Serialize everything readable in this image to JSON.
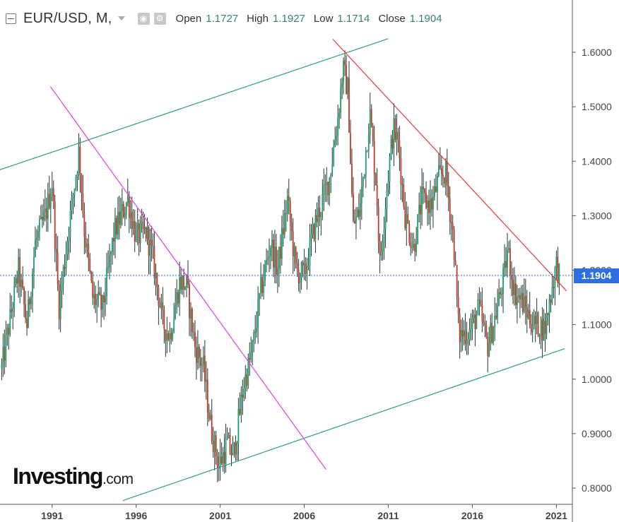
{
  "header": {
    "symbol": "EUR/USD, M,",
    "open_label": "Open",
    "open_value": "1.1727",
    "high_label": "High",
    "high_value": "1.1927",
    "low_label": "Low",
    "low_value": "1.1714",
    "close_label": "Close",
    "close_value": "1.1904"
  },
  "watermark": {
    "brand": "Investing",
    "domain": ".com"
  },
  "price_tag": "1.1904",
  "colors": {
    "up": "#1a9e6a",
    "down": "#c0392b",
    "wick": "#1f3b2d",
    "channel": "#2e9e7a",
    "magenta_line": "#e040e0",
    "red_line": "#e53935",
    "price_line": "#2f6fe0",
    "tag": "#2f6fe0"
  },
  "chart_data": {
    "type": "candlestick",
    "timeframe": "monthly",
    "ylim": [
      0.78,
      1.655
    ],
    "x_ticks": [
      "1991",
      "1996",
      "2001",
      "2006",
      "2011",
      "2016",
      "2021"
    ],
    "y_ticks": [
      "1.6000",
      "1.5000",
      "1.4000",
      "1.3000",
      "1.2000",
      "1.1000",
      "1.0000",
      "0.9000",
      "0.8000"
    ],
    "current_price": 1.1904,
    "path": [
      [
        1988.0,
        1.02
      ],
      [
        1989.0,
        1.2
      ],
      [
        1989.5,
        1.1
      ],
      [
        1990.0,
        1.25
      ],
      [
        1990.6,
        1.3
      ],
      [
        1991.0,
        1.36
      ],
      [
        1991.4,
        1.13
      ],
      [
        1992.0,
        1.28
      ],
      [
        1992.6,
        1.42
      ],
      [
        1992.9,
        1.28
      ],
      [
        1993.4,
        1.15
      ],
      [
        1994.0,
        1.13
      ],
      [
        1994.7,
        1.27
      ],
      [
        1995.5,
        1.33
      ],
      [
        1996.0,
        1.26
      ],
      [
        1996.6,
        1.27
      ],
      [
        1997.0,
        1.22
      ],
      [
        1997.6,
        1.1
      ],
      [
        1998.0,
        1.08
      ],
      [
        1998.6,
        1.18
      ],
      [
        1999.0,
        1.17
      ],
      [
        1999.5,
        1.06
      ],
      [
        2000.0,
        1.02
      ],
      [
        2000.4,
        0.92
      ],
      [
        2000.9,
        0.84
      ],
      [
        2001.4,
        0.88
      ],
      [
        2001.8,
        0.86
      ],
      [
        2002.4,
        0.99
      ],
      [
        2002.9,
        1.05
      ],
      [
        2003.4,
        1.16
      ],
      [
        2004.0,
        1.25
      ],
      [
        2004.4,
        1.2
      ],
      [
        2005.0,
        1.33
      ],
      [
        2005.5,
        1.2
      ],
      [
        2006.0,
        1.19
      ],
      [
        2006.6,
        1.28
      ],
      [
        2007.0,
        1.32
      ],
      [
        2007.5,
        1.37
      ],
      [
        2008.0,
        1.48
      ],
      [
        2008.3,
        1.57
      ],
      [
        2008.6,
        1.53
      ],
      [
        2008.9,
        1.28
      ],
      [
        2009.3,
        1.31
      ],
      [
        2009.9,
        1.49
      ],
      [
        2010.3,
        1.35
      ],
      [
        2010.5,
        1.21
      ],
      [
        2010.9,
        1.35
      ],
      [
        2011.3,
        1.46
      ],
      [
        2011.6,
        1.43
      ],
      [
        2012.0,
        1.3
      ],
      [
        2012.5,
        1.24
      ],
      [
        2013.0,
        1.33
      ],
      [
        2013.6,
        1.32
      ],
      [
        2014.0,
        1.37
      ],
      [
        2014.4,
        1.38
      ],
      [
        2014.9,
        1.25
      ],
      [
        2015.2,
        1.08
      ],
      [
        2015.9,
        1.09
      ],
      [
        2016.4,
        1.13
      ],
      [
        2016.9,
        1.06
      ],
      [
        2017.4,
        1.12
      ],
      [
        2017.9,
        1.19
      ],
      [
        2018.1,
        1.24
      ],
      [
        2018.5,
        1.16
      ],
      [
        2019.0,
        1.14
      ],
      [
        2019.6,
        1.1
      ],
      [
        2020.0,
        1.1
      ],
      [
        2020.3,
        1.09
      ],
      [
        2020.8,
        1.18
      ],
      [
        2021.0,
        1.21
      ],
      [
        2021.2,
        1.19
      ]
    ],
    "trend_lines": [
      {
        "name": "upper-channel",
        "x1": 1987.0,
        "y1": 1.375,
        "x2": 2011.0,
        "y2": 1.625
      },
      {
        "name": "lower-channel",
        "x1": 1995.2,
        "y1": 0.777,
        "x2": 2021.5,
        "y2": 1.056
      },
      {
        "name": "magenta-downtrend",
        "x1": 1990.9,
        "y1": 1.537,
        "x2": 2007.3,
        "y2": 0.834
      },
      {
        "name": "red-downtrend",
        "x1": 2007.7,
        "y1": 1.624,
        "x2": 2021.6,
        "y2": 1.162
      }
    ]
  }
}
